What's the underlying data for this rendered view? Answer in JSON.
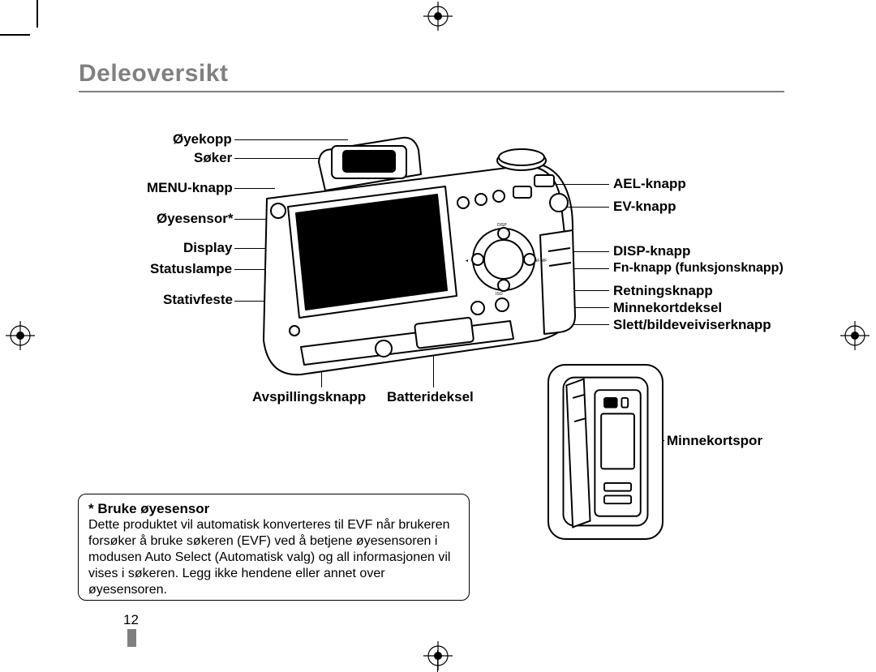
{
  "title": {
    "text": "Deleoversikt",
    "color": "#808080",
    "fontsize": 30
  },
  "left_labels": {
    "oyekopp": "Øyekopp",
    "soker": "Søker",
    "menu": "MENU-knapp",
    "oyesensor": "Øyesensor*",
    "display": "Display",
    "statuslampe": "Statuslampe",
    "stativfeste": "Stativfeste"
  },
  "right_labels": {
    "ael": "AEL-knapp",
    "ev": "EV-knapp",
    "disp": "DISP-knapp",
    "fn": "Fn-knapp (funksjonsknapp)",
    "retn": "Retningsknapp",
    "minnedeksel": "Minnekortdeksel",
    "slett": "Slett/bildeveiviserknapp"
  },
  "bottom_labels": {
    "avspilling": "Avspillingsknapp",
    "batteri": "Batterideksel"
  },
  "inset_label": "Minnekortspor",
  "note": {
    "title": "* Bruke øyesensor",
    "body": "Dette produktet vil automatisk konverteres til EVF når brukeren forsøker å bruke søkeren (EVF) ved å betjene øyesensoren i modusen Auto Select (Automatisk valg) og all informasjonen vil vises i søkeren. Legg ikke hendene eller annet over øyesensoren."
  },
  "page_number": "12",
  "label_fontsize": 17,
  "note_title_fontsize": 17,
  "note_body_fontsize": 16,
  "colors": {
    "text": "#000000",
    "grey": "#808080"
  }
}
